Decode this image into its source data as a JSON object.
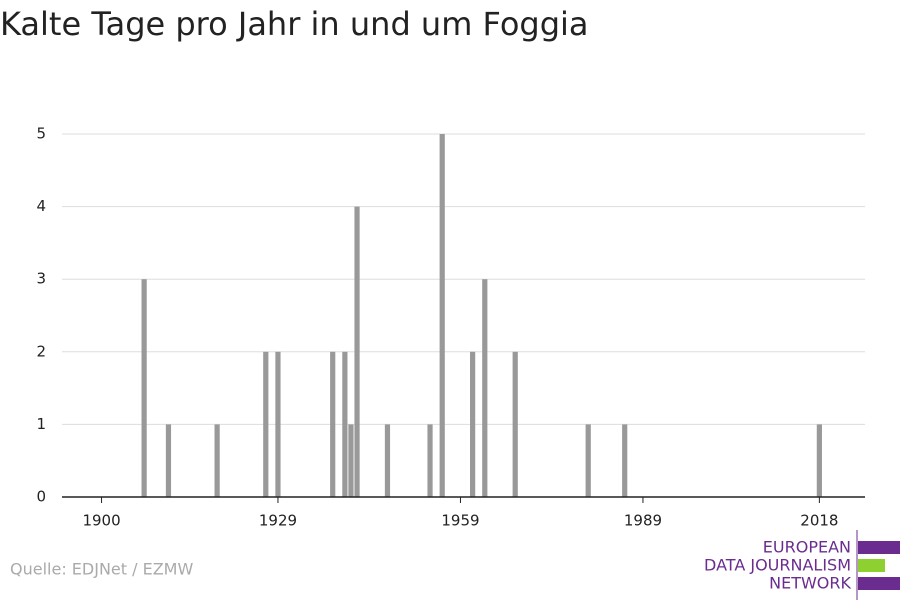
{
  "chart_data": {
    "type": "bar",
    "title": "Kalte Tage pro Jahr in und um Foggia",
    "x": [
      1907,
      1911,
      1919,
      1927,
      1929,
      1938,
      1940,
      1941,
      1942,
      1947,
      1954,
      1956,
      1961,
      1963,
      1968,
      1980,
      1986,
      2018
    ],
    "values": [
      3,
      1,
      1,
      2,
      2,
      2,
      2,
      1,
      4,
      1,
      1,
      5,
      2,
      3,
      2,
      1,
      1,
      1
    ],
    "color": "#999999",
    "xlim": [
      1893.5,
      2025.5
    ],
    "xticks": [
      1900,
      1929,
      1959,
      1989,
      2018
    ],
    "ylim": [
      0,
      5
    ],
    "yticks": [
      0,
      1,
      2,
      3,
      4,
      5
    ],
    "grid": true
  },
  "footer": {
    "source": "Quelle: EDJNet / EZMW",
    "logo": [
      "EUROPEAN",
      "DATA JOURNALISM",
      "NETWORK"
    ]
  }
}
